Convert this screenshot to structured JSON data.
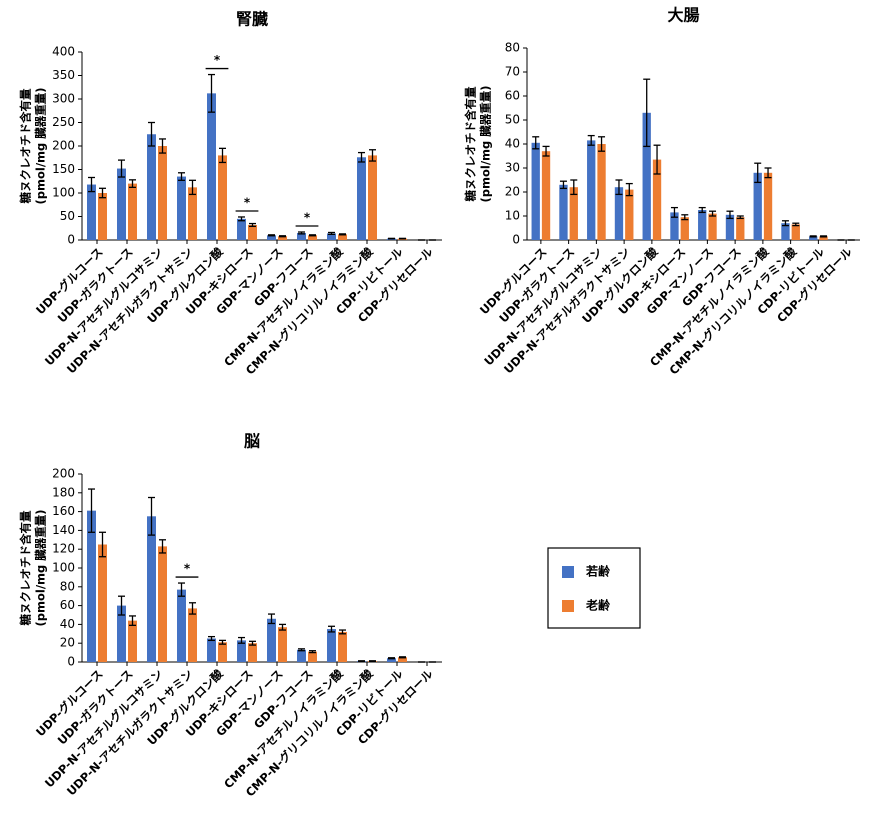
{
  "chart_data": [
    {
      "type": "bar",
      "title": "腎臓",
      "ylabel": [
        "糖ヌクレオチド含有量",
        "(pmol/mg 臓器重量)"
      ],
      "categories": [
        "UDP-グルコース",
        "UDP-ガラクトース",
        "UDP-N-アセチルグルコサミン",
        "UDP-N-アセチルガラクトサミン",
        "UDP-グルクロン酸",
        "UDP-キシロース",
        "GDP-マンノース",
        "GDP-フコース",
        "CMP-N-アセチルノイラミン酸",
        "CMP-N-グリコリルノイラミン酸",
        "CDP-リビトール",
        "CDP-グリセロール"
      ],
      "series": [
        {
          "color": "#4472c4",
          "values": [
            118,
            152,
            225,
            135,
            312,
            45,
            10,
            15,
            14,
            176,
            3,
            0
          ],
          "errors": [
            15,
            18,
            25,
            8,
            40,
            4,
            1,
            2,
            2,
            10,
            0.5,
            0
          ]
        },
        {
          "color": "#ed7d31",
          "values": [
            100,
            120,
            200,
            112,
            180,
            32,
            8,
            10,
            12,
            180,
            3,
            0
          ],
          "errors": [
            10,
            8,
            15,
            15,
            15,
            3,
            1,
            1,
            1,
            12,
            0.5,
            0
          ]
        }
      ],
      "ylim": [
        0,
        400
      ],
      "yticks": [
        0,
        50,
        100,
        150,
        200,
        250,
        300,
        350,
        400
      ],
      "annotations": [
        {
          "text": "*",
          "category": "UDP-グルクロン酸"
        },
        {
          "text": "*",
          "category": "UDP-キシロース"
        },
        {
          "text": "*",
          "category": "GDP-フコース"
        }
      ]
    },
    {
      "type": "bar",
      "title": "大腸",
      "ylabel": [
        "糖ヌクレオチド含有量",
        "(pmol/mg 臓器重量)"
      ],
      "categories": [
        "UDP-グルコース",
        "UDP-ガラクトース",
        "UDP-N-アセチルグルコサミン",
        "UDP-N-アセチルガラクトサミン",
        "UDP-グルクロン酸",
        "UDP-キシロース",
        "GDP-マンノース",
        "GDP-フコース",
        "CMP-N-アセチルノイラミン酸",
        "CMP-N-グリコリルノイラミン酸",
        "CDP-リビトール",
        "CDP-グリセロール"
      ],
      "series": [
        {
          "color": "#4472c4",
          "values": [
            40.5,
            23,
            41.5,
            22,
            53,
            11.5,
            12.5,
            10.5,
            28,
            7,
            1.5,
            0
          ],
          "errors": [
            2.5,
            1.5,
            2,
            3,
            14,
            2,
            1,
            1.5,
            4,
            1,
            0.2,
            0
          ]
        },
        {
          "color": "#ed7d31",
          "values": [
            37,
            22,
            40,
            21,
            33.5,
            9.5,
            11,
            9.5,
            28,
            6.5,
            1.5,
            0
          ],
          "errors": [
            2,
            3,
            3,
            2.5,
            6,
            1,
            1,
            0.5,
            2,
            0.5,
            0.2,
            0
          ]
        }
      ],
      "ylim": [
        0,
        80
      ],
      "yticks": [
        0,
        10,
        20,
        30,
        40,
        50,
        60,
        70,
        80
      ]
    },
    {
      "type": "bar",
      "title": "脳",
      "ylabel": [
        "糖ヌクレオチド含有量",
        "(pmol/mg 臓器重量)"
      ],
      "categories": [
        "UDP-グルコース",
        "UDP-ガラクトース",
        "UDP-N-アセチルグルコサミン",
        "UDP-N-アセチルガラクトサミン",
        "UDP-グルクロン酸",
        "UDP-キシロース",
        "GDP-マンノース",
        "GDP-フコース",
        "CMP-N-アセチルノイラミン酸",
        "CMP-N-グリコリルノイラミン酸",
        "CDP-リビトール",
        "CDP-グリセロール"
      ],
      "series": [
        {
          "name": "若齢",
          "color": "#4472c4",
          "values": [
            161,
            60,
            155,
            77,
            25,
            23,
            46,
            13,
            35,
            1,
            4,
            0
          ],
          "errors": [
            23,
            10,
            20,
            7,
            2,
            3,
            5,
            1,
            3,
            0.3,
            0.5,
            0
          ]
        },
        {
          "name": "老齢",
          "color": "#ed7d31",
          "values": [
            125,
            44,
            123,
            57,
            21,
            20,
            37,
            11,
            32,
            1,
            5,
            0
          ],
          "errors": [
            13,
            5,
            7,
            6,
            2,
            2,
            3,
            1,
            2,
            0.3,
            0.5,
            0
          ]
        }
      ],
      "ylim": [
        0,
        200
      ],
      "yticks": [
        0,
        20,
        40,
        60,
        80,
        100,
        120,
        140,
        160,
        180,
        200
      ],
      "annotations": [
        {
          "text": "*",
          "category": "UDP-N-アセチルガラクトサミン"
        }
      ]
    }
  ]
}
